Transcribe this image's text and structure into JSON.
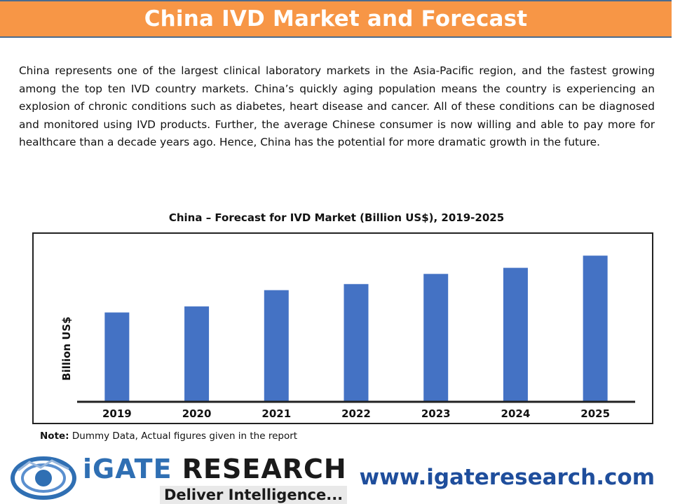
{
  "header": {
    "title": "China IVD Market and Forecast"
  },
  "intro": {
    "text": "China represents one of the largest clinical laboratory markets in the Asia-Pacific region, and the fastest growing among the top ten IVD country markets. China’s quickly aging population means the country is experiencing an explosion of chronic conditions such as diabetes, heart disease and cancer. All of these conditions can be diagnosed and monitored using IVD products.  Further, the average Chinese consumer is now willing and able to pay more for healthcare than a decade years ago. Hence, China has the potential for more dramatic growth in the future."
  },
  "chart_data": {
    "type": "bar",
    "title": "China  – Forecast for IVD Market (Billion US$), 2019-2025",
    "ylabel": "Billion US$",
    "xlabel": "",
    "categories": [
      "2019",
      "2020",
      "2021",
      "2022",
      "2023",
      "2024",
      "2025"
    ],
    "values": [
      4.4,
      4.7,
      5.5,
      5.8,
      6.3,
      6.6,
      7.2
    ],
    "ylim": [
      0,
      8
    ],
    "grid": false,
    "bar_color": "#4472c4"
  },
  "note": {
    "label": "Note:",
    "text": " Dummy Data, Actual figures given in the report"
  },
  "logo": {
    "name_accent": "iGATE",
    "name_rest": " RESEARCH",
    "tagline": "Deliver Intelligence..."
  },
  "website": "www.igateresearch.com"
}
